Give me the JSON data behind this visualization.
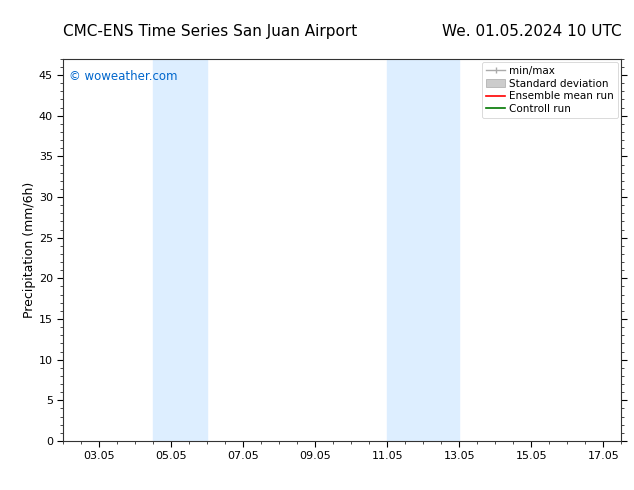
{
  "title_left": "CMC-ENS Time Series San Juan Airport",
  "title_right": "We. 01.05.2024 10 UTC",
  "ylabel": "Precipitation (mm/6h)",
  "watermark": "© woweather.com",
  "watermark_color": "#0066cc",
  "ylim": [
    0,
    47
  ],
  "yticks": [
    0,
    5,
    10,
    15,
    20,
    25,
    30,
    35,
    40,
    45
  ],
  "xlim_start": 2.0,
  "xlim_end": 17.5,
  "xtick_labels": [
    "03.05",
    "05.05",
    "07.05",
    "09.05",
    "11.05",
    "13.05",
    "15.05",
    "17.05"
  ],
  "xtick_positions": [
    3,
    5,
    7,
    9,
    11,
    13,
    15,
    17
  ],
  "shaded_bands": [
    {
      "x_start": 4.5,
      "x_end": 6.0
    },
    {
      "x_start": 11.0,
      "x_end": 13.0
    }
  ],
  "shade_color": "#ddeeff",
  "background_color": "#ffffff",
  "legend_entries": [
    {
      "label": "min/max",
      "color": "#aaaaaa",
      "style": "minmax"
    },
    {
      "label": "Standard deviation",
      "color": "#cccccc",
      "style": "stddev"
    },
    {
      "label": "Ensemble mean run",
      "color": "#ff0000",
      "style": "line"
    },
    {
      "label": "Controll run",
      "color": "#007700",
      "style": "line"
    }
  ],
  "title_fontsize": 11,
  "axis_fontsize": 9,
  "tick_fontsize": 8,
  "legend_fontsize": 7.5
}
